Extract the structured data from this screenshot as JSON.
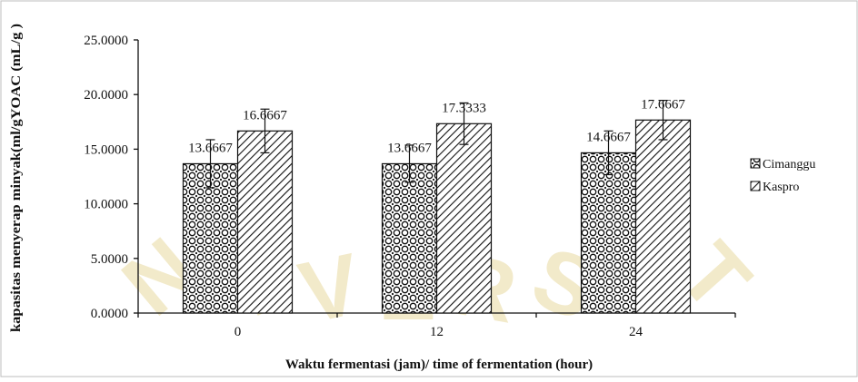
{
  "chart_data": {
    "type": "bar",
    "title": "",
    "xlabel": "Waktu fermentasi (jam)/ time of fermentation (hour)",
    "ylabel": "kapasitas menyerap minyak(ml/gYOAC (mL/g )",
    "categories": [
      "0",
      "12",
      "24"
    ],
    "ylim": [
      0,
      25
    ],
    "yticks": [
      "0.0000",
      "5.0000",
      "10.0000",
      "15.0000",
      "20.0000",
      "25.0000"
    ],
    "series": [
      {
        "name": "Cimanggu",
        "values": [
          13.6667,
          13.6667,
          14.6667
        ],
        "labels": [
          "13.6667",
          "13.6667",
          "14.6667"
        ],
        "error": [
          2.2,
          1.7,
          2.0
        ],
        "pattern": "dots"
      },
      {
        "name": "Kaspro",
        "values": [
          16.6667,
          17.3333,
          17.6667
        ],
        "labels": [
          "16.6667",
          "17.3333",
          "17.6667"
        ],
        "error": [
          2.0,
          1.9,
          1.8
        ],
        "pattern": "diagonal"
      }
    ],
    "grid": false,
    "legend_position": "right"
  },
  "watermark": {
    "letters": [
      "N",
      "I",
      "V",
      "E",
      "R",
      "S",
      "I",
      "T"
    ],
    "color": "#e8d9a0"
  },
  "colors": {
    "frame": "#bdbdbd",
    "axis": "#111111",
    "bar_fill": "#ffffff",
    "bar_ink": "#111111"
  }
}
